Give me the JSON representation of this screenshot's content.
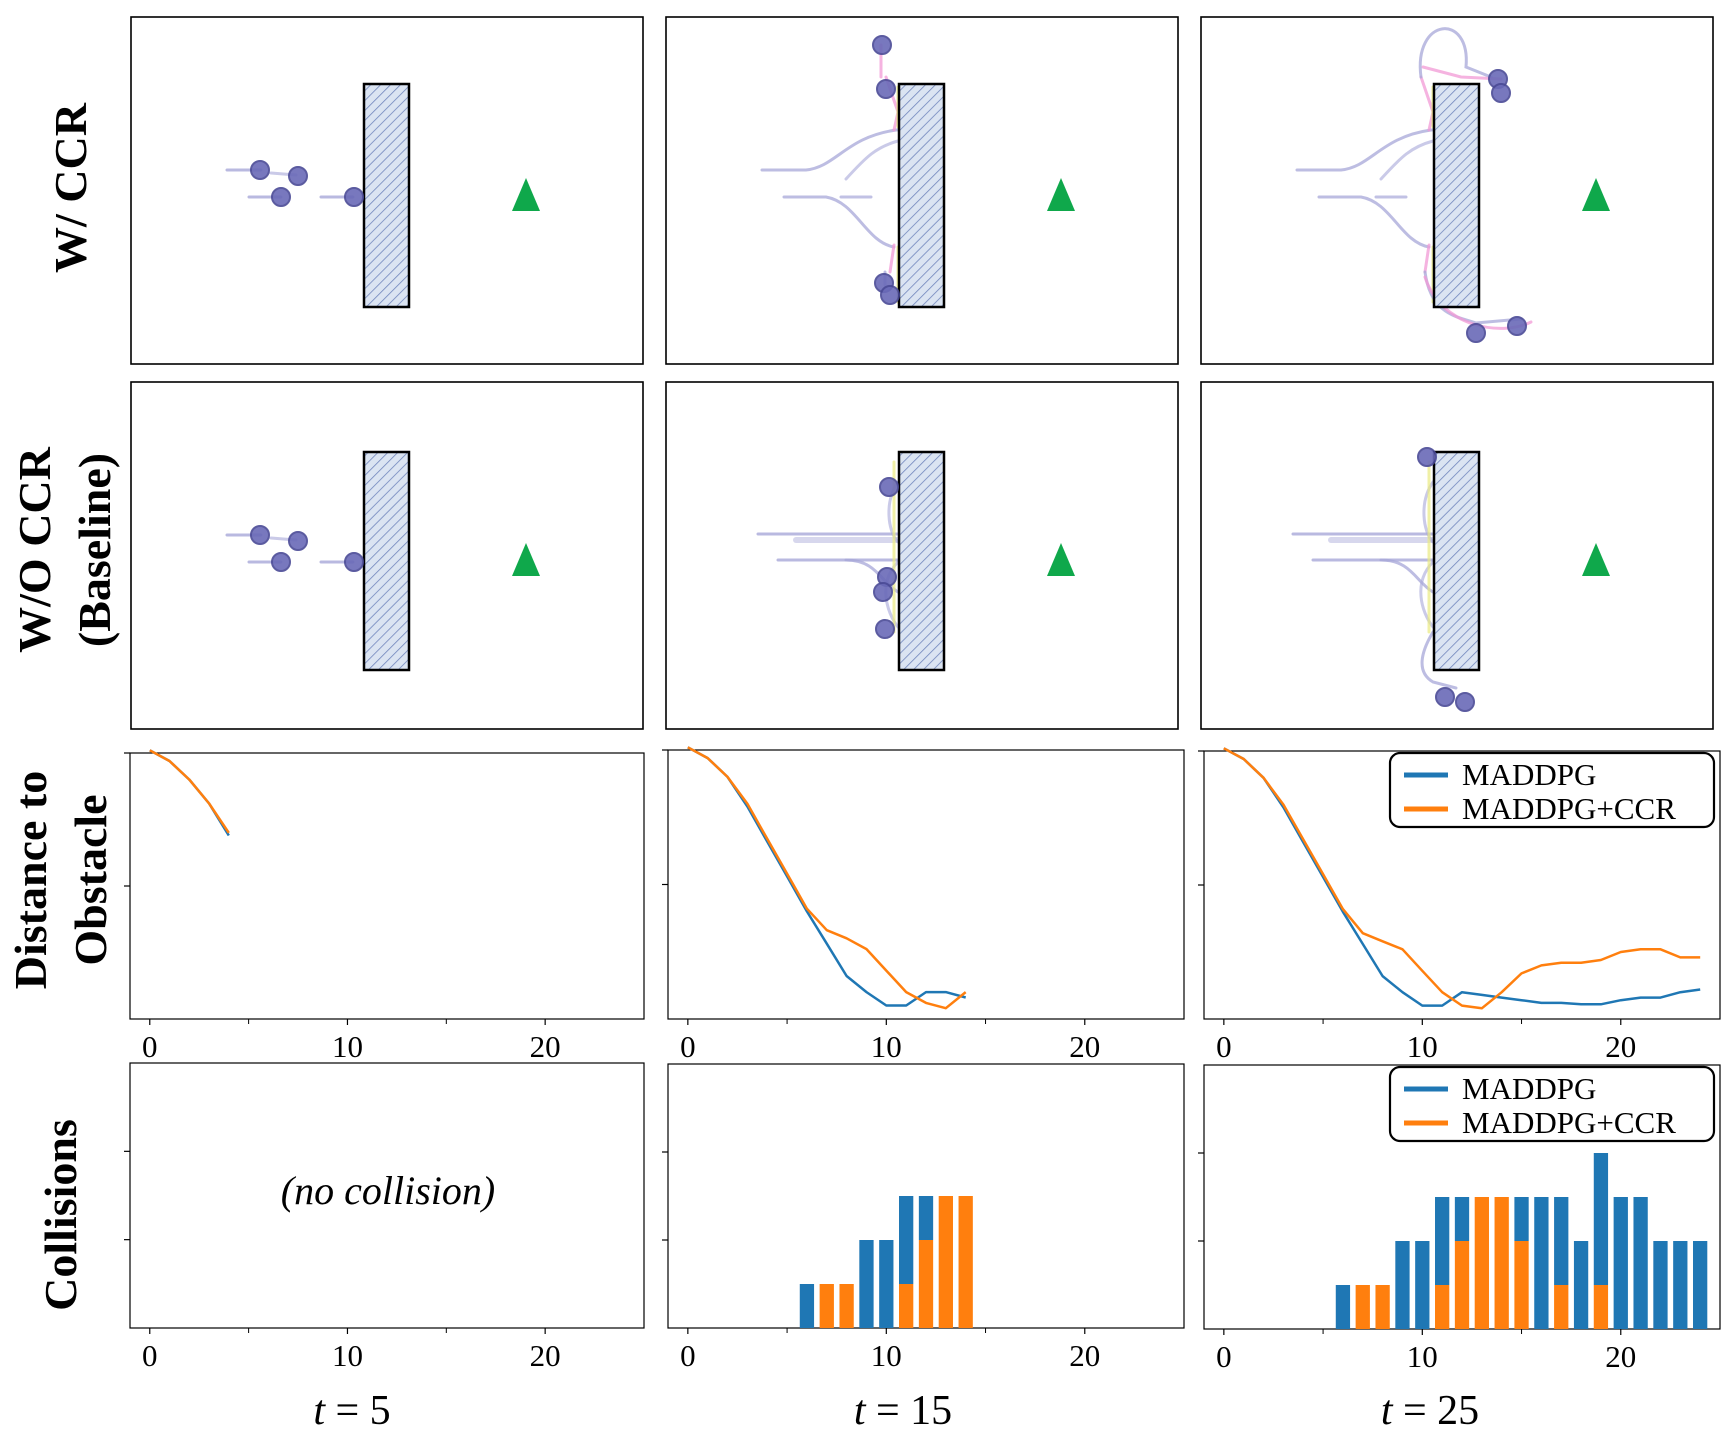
{
  "row_labels": {
    "with_ccr": "W/ CCR",
    "without_ccr_line1": "W/O CCR",
    "without_ccr_line2": "(Baseline)",
    "distance_line1": "Distance to",
    "distance_line2": "Obstacle",
    "collisions": "Collisions"
  },
  "time_labels": {
    "prefix": "t",
    "equals": " = ",
    "values": [
      "5",
      "15",
      "25"
    ]
  },
  "no_collision_note": "(no collision)",
  "colors": {
    "maddpg": "#1f77b4",
    "ccr": "#ff7f0e",
    "agent": "#6a6ab8",
    "goal": "#0fa84b",
    "trail_blue": "#a7a7d8",
    "trail_pink": "#f19ad6",
    "trail_yellow": "#eaea80",
    "obstacle_fill": "#dbe4f2",
    "obstacle_hatch": "#6b7fb4"
  },
  "chart_data": [
    {
      "type": "line",
      "title": "Distance to Obstacle",
      "panel": "t = 5",
      "xlim": [
        -1,
        25
      ],
      "ylim": [
        0,
        1
      ],
      "xticks": [
        0,
        10,
        20
      ],
      "legend": null,
      "series": [
        {
          "name": "MADDPG",
          "x": [
            0,
            1,
            2,
            3,
            4
          ],
          "values": [
            1.01,
            0.97,
            0.9,
            0.81,
            0.69
          ]
        },
        {
          "name": "MADDPG+CCR",
          "x": [
            0,
            1,
            2,
            3,
            4
          ],
          "values": [
            1.01,
            0.97,
            0.9,
            0.81,
            0.7
          ]
        }
      ]
    },
    {
      "type": "line",
      "title": "Distance to Obstacle",
      "panel": "t = 15",
      "xlim": [
        -1,
        25
      ],
      "ylim": [
        0,
        1
      ],
      "xticks": [
        0,
        10,
        20
      ],
      "legend": null,
      "series": [
        {
          "name": "MADDPG",
          "x": [
            0,
            1,
            2,
            3,
            4,
            5,
            6,
            7,
            8,
            9,
            10,
            11,
            12,
            13,
            14
          ],
          "values": [
            1.01,
            0.97,
            0.9,
            0.79,
            0.66,
            0.53,
            0.4,
            0.28,
            0.16,
            0.1,
            0.05,
            0.05,
            0.1,
            0.1,
            0.08
          ]
        },
        {
          "name": "MADDPG+CCR",
          "x": [
            0,
            1,
            2,
            3,
            4,
            5,
            6,
            7,
            8,
            9,
            10,
            11,
            12,
            13,
            14
          ],
          "values": [
            1.01,
            0.97,
            0.9,
            0.8,
            0.67,
            0.54,
            0.41,
            0.33,
            0.3,
            0.26,
            0.18,
            0.1,
            0.06,
            0.04,
            0.1
          ]
        }
      ]
    },
    {
      "type": "line",
      "title": "Distance to Obstacle",
      "panel": "t = 25",
      "xlim": [
        -1,
        25
      ],
      "ylim": [
        0,
        1
      ],
      "xticks": [
        0,
        10,
        20
      ],
      "legend": {
        "position": "top-right",
        "entries": [
          "MADDPG",
          "MADDPG+CCR"
        ]
      },
      "series": [
        {
          "name": "MADDPG",
          "x": [
            0,
            1,
            2,
            3,
            4,
            5,
            6,
            7,
            8,
            9,
            10,
            11,
            12,
            13,
            14,
            15,
            16,
            17,
            18,
            19,
            20,
            21,
            22,
            23,
            24
          ],
          "values": [
            1.01,
            0.97,
            0.9,
            0.79,
            0.66,
            0.53,
            0.4,
            0.28,
            0.16,
            0.1,
            0.05,
            0.05,
            0.1,
            0.09,
            0.08,
            0.07,
            0.06,
            0.06,
            0.055,
            0.055,
            0.07,
            0.08,
            0.08,
            0.1,
            0.11
          ]
        },
        {
          "name": "MADDPG+CCR",
          "x": [
            0,
            1,
            2,
            3,
            4,
            5,
            6,
            7,
            8,
            9,
            10,
            11,
            12,
            13,
            14,
            15,
            16,
            17,
            18,
            19,
            20,
            21,
            22,
            23,
            24
          ],
          "values": [
            1.01,
            0.97,
            0.9,
            0.8,
            0.67,
            0.54,
            0.41,
            0.32,
            0.29,
            0.26,
            0.18,
            0.1,
            0.05,
            0.04,
            0.1,
            0.17,
            0.2,
            0.21,
            0.21,
            0.22,
            0.25,
            0.26,
            0.26,
            0.23,
            0.23
          ]
        }
      ]
    },
    {
      "type": "bar",
      "stacked": true,
      "title": "Collisions",
      "panel": "t = 5",
      "xlim": [
        -1,
        25
      ],
      "ylim": [
        0,
        6
      ],
      "xticks": [
        0,
        10,
        20
      ],
      "legend": null,
      "x": [],
      "series": [
        {
          "name": "MADDPG",
          "values": []
        },
        {
          "name": "MADDPG+CCR",
          "values": []
        }
      ]
    },
    {
      "type": "bar",
      "stacked": true,
      "title": "Collisions",
      "panel": "t = 15",
      "xlim": [
        -1,
        25
      ],
      "ylim": [
        0,
        6
      ],
      "xticks": [
        0,
        10,
        20
      ],
      "legend": null,
      "x": [
        6,
        7,
        8,
        9,
        10,
        11,
        12,
        13,
        14
      ],
      "series": [
        {
          "name": "MADDPG",
          "values": [
            1,
            0,
            0,
            2,
            2,
            2,
            1,
            0,
            0
          ]
        },
        {
          "name": "MADDPG+CCR",
          "values": [
            0,
            1,
            1,
            0,
            0,
            1,
            2,
            3,
            3
          ]
        }
      ]
    },
    {
      "type": "bar",
      "stacked": true,
      "title": "Collisions",
      "panel": "t = 25",
      "xlim": [
        -1,
        25
      ],
      "ylim": [
        0,
        6
      ],
      "xticks": [
        0,
        10,
        20
      ],
      "legend": {
        "position": "top-right",
        "entries": [
          "MADDPG",
          "MADDPG+CCR"
        ]
      },
      "x": [
        6,
        7,
        8,
        9,
        10,
        11,
        12,
        13,
        14,
        15,
        16,
        17,
        18,
        19,
        20,
        21,
        22,
        23,
        24
      ],
      "series": [
        {
          "name": "MADDPG",
          "values": [
            1,
            0,
            0,
            2,
            2,
            2,
            1,
            0,
            0,
            1,
            3,
            2,
            2,
            3,
            3,
            3,
            2,
            2,
            2
          ]
        },
        {
          "name": "MADDPG+CCR",
          "values": [
            0,
            1,
            1,
            0,
            0,
            1,
            2,
            3,
            3,
            2,
            0,
            1,
            0,
            1,
            0,
            0,
            0,
            0,
            0
          ]
        }
      ]
    }
  ]
}
